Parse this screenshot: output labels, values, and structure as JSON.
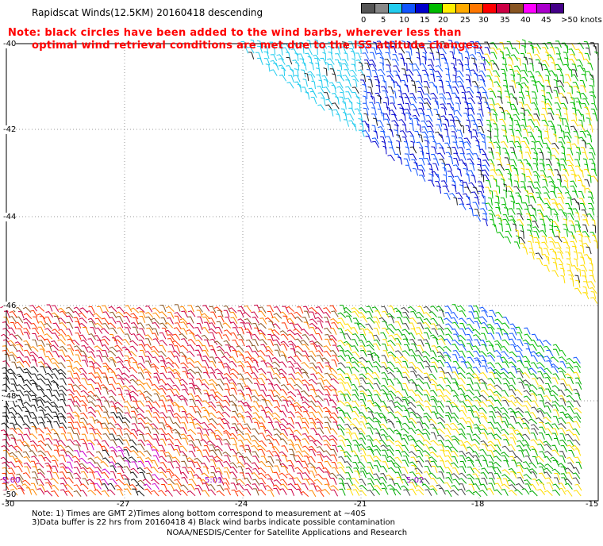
{
  "title": "Rapidscat Winds(12.5KM) 20160418 descending",
  "note_lines": [
    "Note: black circles have been added to the wind barbs, wherever less than",
    "optimal wind retrieval conditions are met due to the ISS attitude changes."
  ],
  "legend": {
    "labels": [
      "0",
      "5",
      "10",
      "15",
      "20",
      "25",
      "30",
      "35",
      "40",
      "45",
      ">50 knots"
    ],
    "colors": [
      "#555555",
      "#888888",
      "#22ccee",
      "#1155ff",
      "#0000cc",
      "#00bb00",
      "#ffee00",
      "#ffaa00",
      "#ff7700",
      "#ff0000",
      "#cc0044",
      "#885522",
      "#ff00ff",
      "#aa00cc",
      "#440088"
    ]
  },
  "lat_labels": [
    "-40",
    "-42",
    "-44",
    "-46",
    "-48",
    "-50"
  ],
  "lon_labels": [
    "-30",
    "-27",
    "-24",
    "-21",
    "-18",
    "-15"
  ],
  "time_labels": [
    "5:00",
    "5:01",
    "5:02"
  ],
  "footer": {
    "line1": "Note: 1) Times are GMT 2)Times along bottom correspond to measurement at ~40S",
    "line2": "3)Data buffer is 22 hrs from 20160418 4) Black wind barbs indicate possible contamination",
    "line3": "NOAA/NESDIS/Center for Satellite Applications and Research"
  }
}
